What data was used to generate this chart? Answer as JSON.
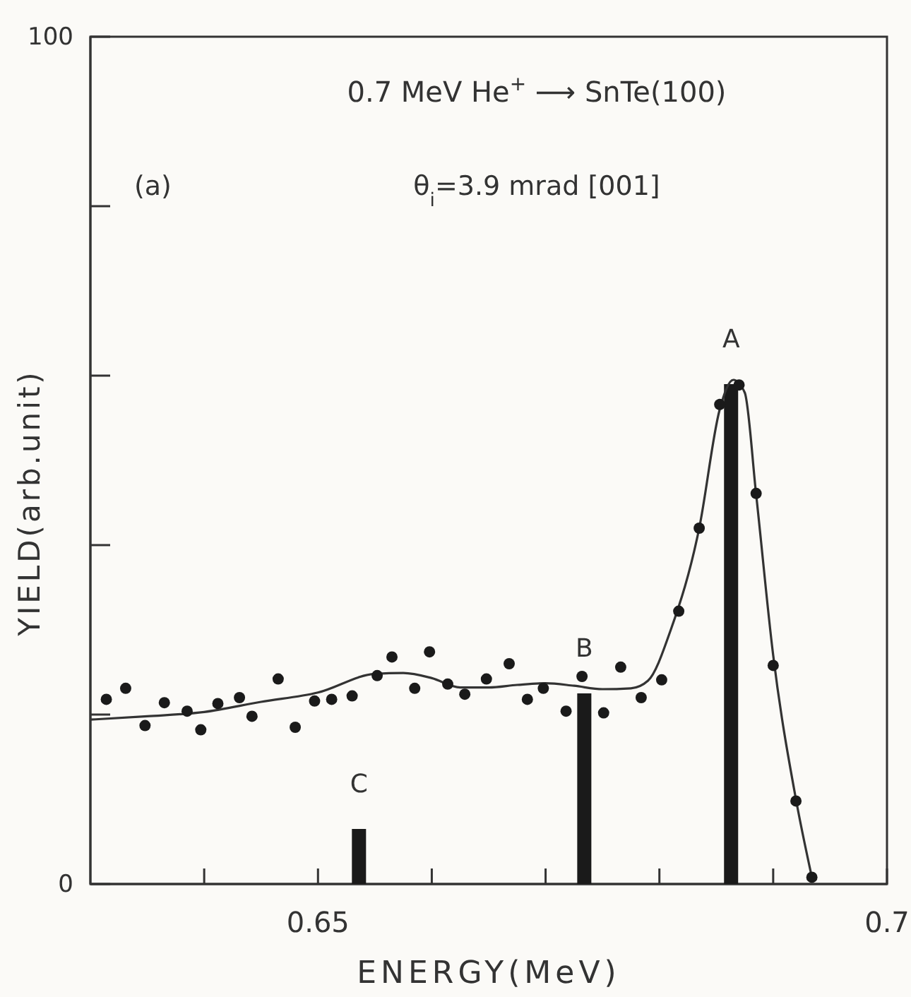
{
  "chart_data": {
    "type": "scatter",
    "title": "0.7 MeV He$^{+}$ ⟶ SnTe(100)",
    "xlabel": "ENERGY(MeV)",
    "ylabel": "YIELD(arb.unit)",
    "xlim": [
      0.63,
      0.7
    ],
    "xticks": [
      {
        "value": 0.64,
        "label": null
      },
      0.65,
      {
        "value": 0.66,
        "label": null
      },
      {
        "value": 0.67,
        "label": null
      },
      {
        "value": 0.68,
        "label": null
      },
      {
        "value": 0.69,
        "label": null
      },
      0.7
    ],
    "ylim": [
      0,
      100
    ],
    "yticks": [
      0,
      {
        "value": 20,
        "label": null
      },
      {
        "value": 40,
        "label": null
      },
      {
        "value": 60,
        "label": null
      },
      {
        "value": 80,
        "label": null
      },
      100
    ],
    "grid": false,
    "marker": "circle",
    "line_style": "solid",
    "annotations": [
      "(a)",
      "θ$_{i}$=3.9 mrad  [001]",
      {
        "text": "A",
        "x": 0.6863,
        "y": 59
      },
      {
        "text": "B",
        "x": 0.6734,
        "y": 22.5
      },
      {
        "text": "C",
        "x": 0.6536,
        "y": 6.5
      }
    ],
    "series": [
      {
        "type": "bar",
        "color": "#1a1a1a",
        "x": [
          0.6536,
          0.6734,
          0.6863
        ],
        "values": [
          6.5,
          22.5,
          59
        ]
      },
      {
        "type": "line",
        "color": "#333333",
        "marker": "none",
        "x": [
          0.63,
          0.635,
          0.64,
          0.645,
          0.65,
          0.655,
          0.6575,
          0.66,
          0.6625,
          0.665,
          0.6675,
          0.67,
          0.6725,
          0.675,
          0.6775,
          0.679,
          0.681,
          0.6835,
          0.6853,
          0.6865,
          0.6875,
          0.6885,
          0.69,
          0.692,
          0.6934
        ],
        "values": [
          19.4,
          19.8,
          20.3,
          21.5,
          22.6,
          24.8,
          24.9,
          24.3,
          23.2,
          23.2,
          23.5,
          23.7,
          23.4,
          23,
          23.1,
          24,
          30,
          42,
          56,
          59.5,
          58,
          46,
          27,
          10,
          0.8
        ]
      },
      {
        "color": "#1a1a1a",
        "x": [
          0.6314,
          0.6331,
          0.6348,
          0.6365,
          0.6385,
          0.6397,
          0.6412,
          0.6431,
          0.6442,
          0.6465,
          0.648,
          0.6497,
          0.6512,
          0.653,
          0.6552,
          0.6565,
          0.6585,
          0.6598,
          0.6614,
          0.6629,
          0.6648,
          0.6668,
          0.6684,
          0.6698,
          0.6718,
          0.6732,
          0.6751,
          0.6766,
          0.6784,
          0.6802,
          0.6817,
          0.6835,
          0.6853,
          0.687,
          0.6885,
          0.69,
          0.692,
          0.6934
        ],
        "values": [
          21.8,
          23.1,
          18.7,
          21.4,
          20.4,
          18.2,
          21.3,
          22,
          19.8,
          24.2,
          18.5,
          21.6,
          21.8,
          22.2,
          24.6,
          26.8,
          23.1,
          27.4,
          23.6,
          22.4,
          24.2,
          26,
          21.8,
          23.1,
          20.4,
          24.5,
          20.2,
          25.6,
          22,
          24.1,
          32.2,
          42,
          56.6,
          58.9,
          46.1,
          25.8,
          9.8,
          0.8
        ]
      }
    ]
  }
}
